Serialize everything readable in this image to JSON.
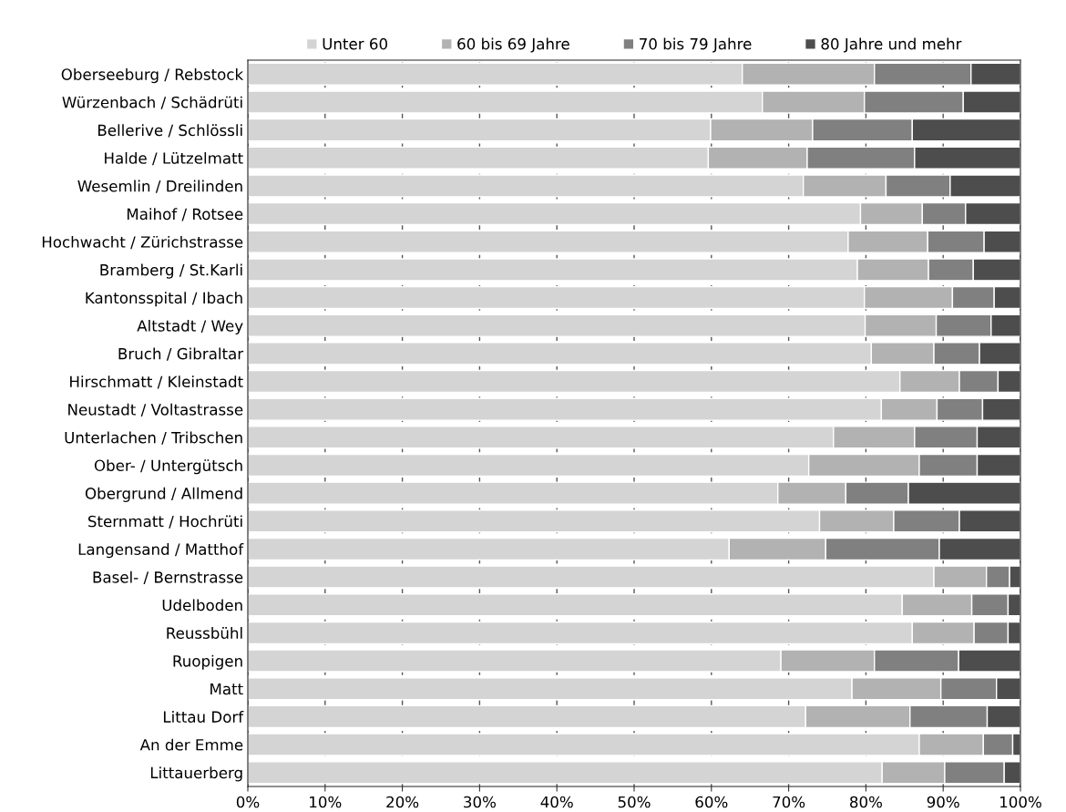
{
  "chart_data": {
    "type": "bar",
    "orientation": "horizontal",
    "stacked": true,
    "grid": "x",
    "legend": "top",
    "categories": [
      "Oberseeburg / Rebstock",
      "Würzenbach / Schädrüti",
      "Bellerive / Schlössli",
      "Halde / Lützelmatt",
      "Wesemlin / Dreilinden",
      "Maihof / Rotsee",
      "Hochwacht / Zürichstrasse",
      "Bramberg / St.Karli",
      "Kantonsspital / Ibach",
      "Altstadt / Wey",
      "Bruch / Gibraltar",
      "Hirschmatt / Kleinstadt",
      "Neustadt / Voltastrasse",
      "Unterlachen / Tribschen",
      "Ober- / Untergütsch",
      "Obergrund / Allmend",
      "Sternmatt / Hochrüti",
      "Langensand / Matthof",
      "Basel- / Bernstrasse",
      "Udelboden",
      "Reussbühl",
      "Ruopigen",
      "Matt",
      "Littau Dorf",
      "An der Emme",
      "Littauerberg"
    ],
    "series": [
      {
        "name": "Unter 60",
        "color": "#d4d4d4",
        "values": [
          64.0,
          66.6,
          59.9,
          59.6,
          71.9,
          79.3,
          77.7,
          78.9,
          79.8,
          79.9,
          80.7,
          84.4,
          82.0,
          75.8,
          72.6,
          68.6,
          74.0,
          62.3,
          88.8,
          84.7,
          86.0,
          69.0,
          78.2,
          72.2,
          86.9,
          82.1
        ]
      },
      {
        "name": "60 bis 69 Jahre",
        "color": "#b2b2b2",
        "values": [
          17.1,
          13.2,
          13.2,
          12.8,
          10.7,
          8.0,
          10.3,
          9.2,
          11.4,
          9.2,
          8.1,
          7.7,
          7.2,
          10.5,
          14.3,
          8.8,
          9.6,
          12.5,
          6.8,
          9.0,
          8.0,
          12.1,
          11.5,
          13.5,
          8.3,
          8.1
        ]
      },
      {
        "name": "70 bis 79 Jahre",
        "color": "#808080",
        "values": [
          12.5,
          12.8,
          12.9,
          13.9,
          8.3,
          5.6,
          7.3,
          5.8,
          5.4,
          7.1,
          5.9,
          5.0,
          5.9,
          8.1,
          7.5,
          8.1,
          8.5,
          14.7,
          3.0,
          4.7,
          4.4,
          10.9,
          7.2,
          10.0,
          3.8,
          7.7
        ]
      },
      {
        "name": "80 Jahre und mehr",
        "color": "#4d4d4d",
        "values": [
          6.4,
          7.4,
          14.0,
          13.7,
          9.1,
          7.1,
          4.7,
          6.1,
          3.4,
          3.8,
          5.3,
          2.9,
          4.9,
          5.6,
          5.6,
          14.5,
          7.9,
          10.5,
          1.4,
          1.6,
          1.6,
          8.0,
          3.1,
          4.3,
          1.0,
          2.1
        ]
      }
    ],
    "xlim": [
      0,
      100
    ],
    "xticks": [
      {
        "value": 0,
        "label": "0%"
      },
      {
        "value": 10,
        "label": "10%"
      },
      {
        "value": 20,
        "label": "20%"
      },
      {
        "value": 30,
        "label": "30%"
      },
      {
        "value": 40,
        "label": "40%"
      },
      {
        "value": 50,
        "label": "50%"
      },
      {
        "value": 60,
        "label": "60%"
      },
      {
        "value": 70,
        "label": "70%"
      },
      {
        "value": 80,
        "label": "80%"
      },
      {
        "value": 90,
        "label": "90%"
      },
      {
        "value": 100,
        "label": "100%"
      }
    ]
  }
}
